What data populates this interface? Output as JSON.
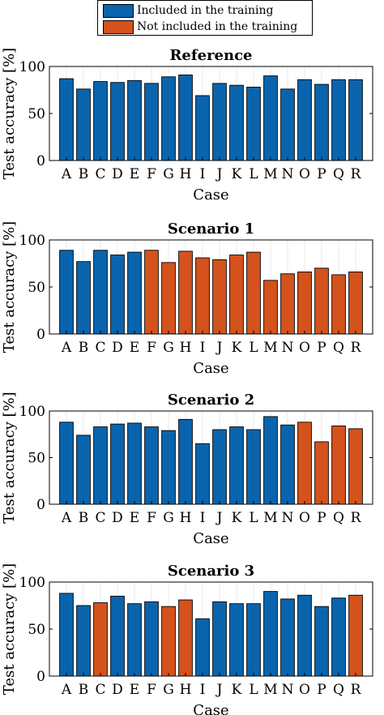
{
  "legend": {
    "entries": [
      {
        "label": "Included in the training",
        "color": "#0a64ad"
      },
      {
        "label": "Not included in the training",
        "color": "#d4521c"
      }
    ]
  },
  "colors": {
    "included": "#0a64ad",
    "excluded": "#d4521c"
  },
  "chart_data": [
    {
      "type": "bar",
      "title": "Reference",
      "xlabel": "Case",
      "ylabel": "Test accuracy [%]",
      "ylim": [
        0,
        100
      ],
      "yticks": [
        0,
        50,
        100
      ],
      "grid": "x",
      "categories": [
        "A",
        "B",
        "C",
        "D",
        "E",
        "F",
        "G",
        "H",
        "I",
        "J",
        "K",
        "L",
        "M",
        "N",
        "O",
        "P",
        "Q",
        "R"
      ],
      "values": [
        87,
        76,
        84,
        83,
        85,
        82,
        89,
        91,
        69,
        82,
        80,
        78,
        90,
        76,
        86,
        81,
        86,
        86
      ],
      "included": [
        true,
        true,
        true,
        true,
        true,
        true,
        true,
        true,
        true,
        true,
        true,
        true,
        true,
        true,
        true,
        true,
        true,
        true
      ]
    },
    {
      "type": "bar",
      "title": "Scenario 1",
      "xlabel": "Case",
      "ylabel": "Test accuracy [%]",
      "ylim": [
        0,
        100
      ],
      "yticks": [
        0,
        50,
        100
      ],
      "grid": "x",
      "categories": [
        "A",
        "B",
        "C",
        "D",
        "E",
        "F",
        "G",
        "H",
        "I",
        "J",
        "K",
        "L",
        "M",
        "N",
        "O",
        "P",
        "Q",
        "R"
      ],
      "values": [
        89,
        77,
        89,
        84,
        87,
        89,
        76,
        88,
        81,
        79,
        84,
        87,
        57,
        64,
        66,
        70,
        63,
        66
      ],
      "included": [
        true,
        true,
        true,
        true,
        true,
        false,
        false,
        false,
        false,
        false,
        false,
        false,
        false,
        false,
        false,
        false,
        false,
        false
      ]
    },
    {
      "type": "bar",
      "title": "Scenario 2",
      "xlabel": "Case",
      "ylabel": "Test accuracy [%]",
      "ylim": [
        0,
        100
      ],
      "yticks": [
        0,
        50,
        100
      ],
      "grid": "x",
      "categories": [
        "A",
        "B",
        "C",
        "D",
        "E",
        "F",
        "G",
        "H",
        "I",
        "J",
        "K",
        "L",
        "M",
        "N",
        "O",
        "P",
        "Q",
        "R"
      ],
      "values": [
        88,
        74,
        83,
        86,
        87,
        83,
        79,
        91,
        65,
        80,
        83,
        80,
        94,
        85,
        88,
        67,
        84,
        81
      ],
      "included": [
        true,
        true,
        true,
        true,
        true,
        true,
        true,
        true,
        true,
        true,
        true,
        true,
        true,
        true,
        false,
        false,
        false,
        false
      ]
    },
    {
      "type": "bar",
      "title": "Scenario 3",
      "xlabel": "Case",
      "ylabel": "Test accuracy [%]",
      "ylim": [
        0,
        100
      ],
      "yticks": [
        0,
        50,
        100
      ],
      "grid": "x",
      "categories": [
        "A",
        "B",
        "C",
        "D",
        "E",
        "F",
        "G",
        "H",
        "I",
        "J",
        "K",
        "L",
        "M",
        "N",
        "O",
        "P",
        "Q",
        "R"
      ],
      "values": [
        88,
        75,
        78,
        85,
        77,
        79,
        74,
        81,
        61,
        79,
        77,
        77,
        90,
        82,
        86,
        74,
        83,
        86
      ],
      "included": [
        true,
        true,
        false,
        true,
        true,
        true,
        false,
        false,
        true,
        true,
        true,
        true,
        true,
        true,
        true,
        true,
        true,
        false
      ]
    }
  ]
}
